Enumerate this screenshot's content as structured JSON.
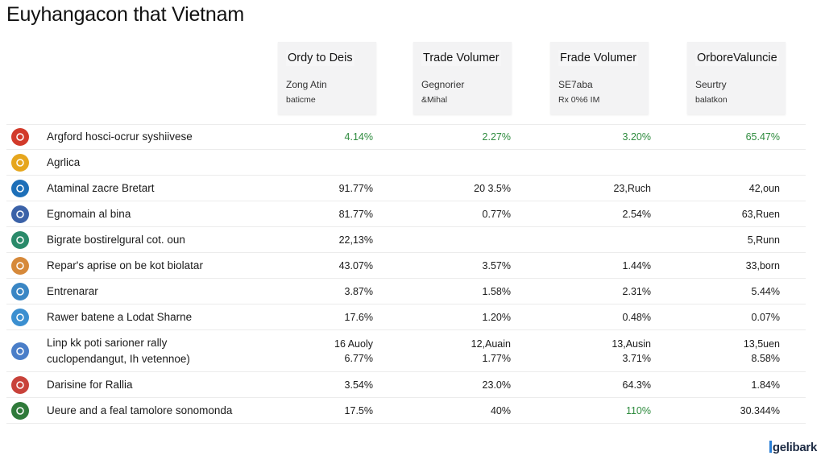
{
  "page": {
    "title": "Euyhangacon that Vietnam"
  },
  "header_cards": [
    {
      "title": "Ordy to Deis",
      "sub1": "Zong Atin",
      "sub2": "baticme"
    },
    {
      "title": "Trade Volumer",
      "sub1": "Gegnorier",
      "sub2": "&Mihal"
    },
    {
      "title": "Frade Volumer",
      "sub1": "SE7aba",
      "sub2": "Rx 0%6 IM"
    },
    {
      "title": "OrboreValuncie",
      "sub1": "Seurtry",
      "sub2": "balatkon"
    }
  ],
  "rows": [
    {
      "icon": "red-badge-icon",
      "icon_color": "#d23a2a",
      "name": "Argford hosci-ocrur syshiivese",
      "values": [
        "4.14%",
        "2.27%",
        "3.20%",
        "65.47%"
      ],
      "green": [
        true,
        true,
        true,
        true
      ]
    },
    {
      "icon": "yellow-globe-icon",
      "icon_color": "#e6a61e",
      "name": "Agrlica",
      "values": [
        "",
        "",
        "",
        ""
      ],
      "green": [
        false,
        false,
        false,
        false
      ]
    },
    {
      "icon": "blue-circle-icon",
      "icon_color": "#1d6fb8",
      "name": "Ataminal zacre Bretart",
      "values": [
        "91.77%",
        "20 3.5%",
        "23,Ruch",
        "42,oun"
      ],
      "green": [
        false,
        false,
        false,
        false
      ]
    },
    {
      "icon": "blue-mountain-icon",
      "icon_color": "#3b62a8",
      "name": "Egnomain al bina",
      "values": [
        "81.77%",
        "0.77%",
        "2.54%",
        "63,Ruen"
      ],
      "green": [
        false,
        false,
        false,
        false
      ]
    },
    {
      "icon": "green-bottle-icon",
      "icon_color": "#2a8a6a",
      "name": "Bigrate bostirelgural cot. oun",
      "values": [
        "22,13%",
        "",
        "",
        "5,Runn"
      ],
      "green": [
        false,
        false,
        false,
        false
      ]
    },
    {
      "icon": "orange-box-icon",
      "icon_color": "#d6893a",
      "name": "Repar's aprise on be kot biolatar",
      "values": [
        "43.07%",
        "3.57%",
        "1.44%",
        "33,born"
      ],
      "green": [
        false,
        false,
        false,
        false
      ]
    },
    {
      "icon": "blue-bird-icon",
      "icon_color": "#3a86c4",
      "name": "Entrenarar",
      "values": [
        "3.87%",
        "1.58%",
        "2.31%",
        "5.44%"
      ],
      "green": [
        false,
        false,
        false,
        false
      ]
    },
    {
      "icon": "blue-snowflake-icon",
      "icon_color": "#3b8fd0",
      "name": "Rawer batene a Lodat Sharne",
      "values": [
        "17.6%",
        "1.20%",
        "0.48%",
        "0.07%"
      ],
      "green": [
        false,
        false,
        false,
        false
      ]
    },
    {
      "icon": "blue-flower-icon",
      "icon_color": "#4a7ec8",
      "name": "Linp kk poti sarioner rally",
      "name2": "cuclopendangut, Ih vetennoe)",
      "values": [
        "16 Auoly",
        "12,Auain",
        "13,Ausin",
        "13,5uen"
      ],
      "values2": [
        "6.77%",
        "1.77%",
        "3.71%",
        "8.58%"
      ],
      "green": [
        false,
        false,
        false,
        false
      ]
    },
    {
      "icon": "red-house-icon",
      "icon_color": "#c8423a",
      "name": "Darisine for Rallia",
      "values": [
        "3.54%",
        "23.0%",
        "64.3%",
        "1.84%"
      ],
      "green": [
        false,
        false,
        false,
        false
      ]
    },
    {
      "icon": "green-globe-icon",
      "icon_color": "#2f7a3a",
      "name": "Ueure and a feal tamolore sonomonda",
      "values": [
        "17.5%",
        "40%",
        "110%",
        "30.344%"
      ],
      "green": [
        false,
        false,
        true,
        false
      ]
    }
  ],
  "brand": {
    "text": "gelibark"
  }
}
